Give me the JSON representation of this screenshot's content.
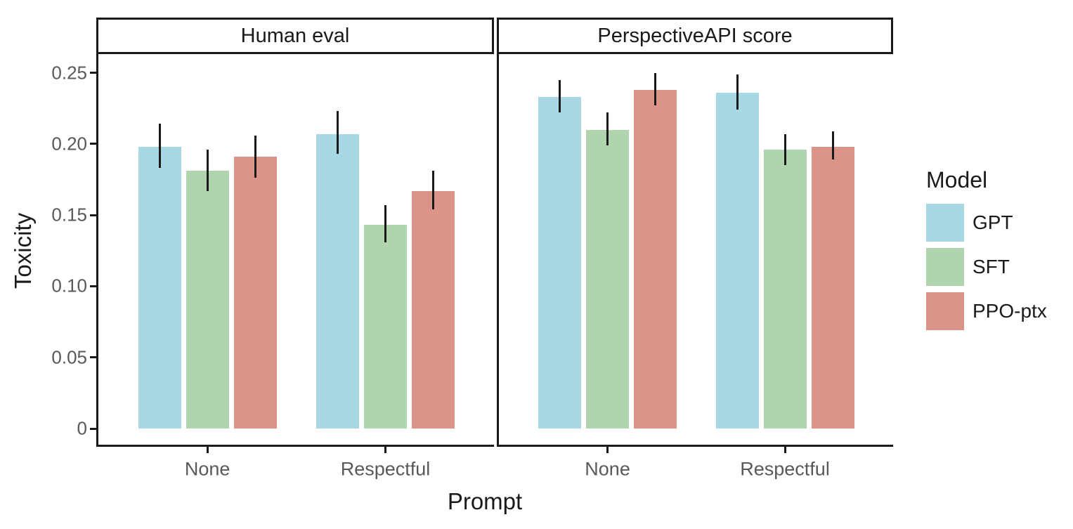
{
  "chart_data": {
    "type": "bar",
    "title": "",
    "ylabel": "Toxicity",
    "xlabel": "Prompt",
    "categories": [
      "None",
      "Respectful"
    ],
    "ylim": [
      0,
      0.27
    ],
    "y_ticks": [
      0,
      0.05,
      0.1,
      0.15,
      0.2,
      0.25
    ],
    "y_tick_labels": [
      "0",
      "0.05",
      "0.10",
      "0.15",
      "0.20",
      "0.25"
    ],
    "grid": false,
    "error_bars": true,
    "legend": {
      "title": "Model",
      "position": "right"
    },
    "series": [
      {
        "name": "GPT",
        "color": "#a8d8e4"
      },
      {
        "name": "SFT",
        "color": "#b0d4ae"
      },
      {
        "name": "PPO-ptx",
        "color": "#dc9489"
      }
    ],
    "facets": [
      {
        "label": "Human eval",
        "groups": [
          {
            "category": "None",
            "bars": [
              {
                "series": "GPT",
                "value": 0.198,
                "err_low": 0.183,
                "err_high": 0.214
              },
              {
                "series": "SFT",
                "value": 0.181,
                "err_low": 0.167,
                "err_high": 0.196
              },
              {
                "series": "PPO-ptx",
                "value": 0.191,
                "err_low": 0.176,
                "err_high": 0.206
              }
            ]
          },
          {
            "category": "Respectful",
            "bars": [
              {
                "series": "GPT",
                "value": 0.207,
                "err_low": 0.193,
                "err_high": 0.223
              },
              {
                "series": "SFT",
                "value": 0.143,
                "err_low": 0.131,
                "err_high": 0.157
              },
              {
                "series": "PPO-ptx",
                "value": 0.167,
                "err_low": 0.154,
                "err_high": 0.181
              }
            ]
          }
        ]
      },
      {
        "label": "PerspectiveAPI score",
        "groups": [
          {
            "category": "None",
            "bars": [
              {
                "series": "GPT",
                "value": 0.233,
                "err_low": 0.222,
                "err_high": 0.245
              },
              {
                "series": "SFT",
                "value": 0.21,
                "err_low": 0.199,
                "err_high": 0.222
              },
              {
                "series": "PPO-ptx",
                "value": 0.238,
                "err_low": 0.227,
                "err_high": 0.25
              }
            ]
          },
          {
            "category": "Respectful",
            "bars": [
              {
                "series": "GPT",
                "value": 0.236,
                "err_low": 0.224,
                "err_high": 0.249
              },
              {
                "series": "SFT",
                "value": 0.196,
                "err_low": 0.185,
                "err_high": 0.207
              },
              {
                "series": "PPO-ptx",
                "value": 0.198,
                "err_low": 0.189,
                "err_high": 0.209
              }
            ]
          }
        ]
      }
    ],
    "colors": {
      "axis_line": "#1a1a1a",
      "axis_text": "#595959",
      "axis_title": "#1a1a1a",
      "error_bar": "#1a1a1a",
      "background": "#ffffff"
    }
  }
}
